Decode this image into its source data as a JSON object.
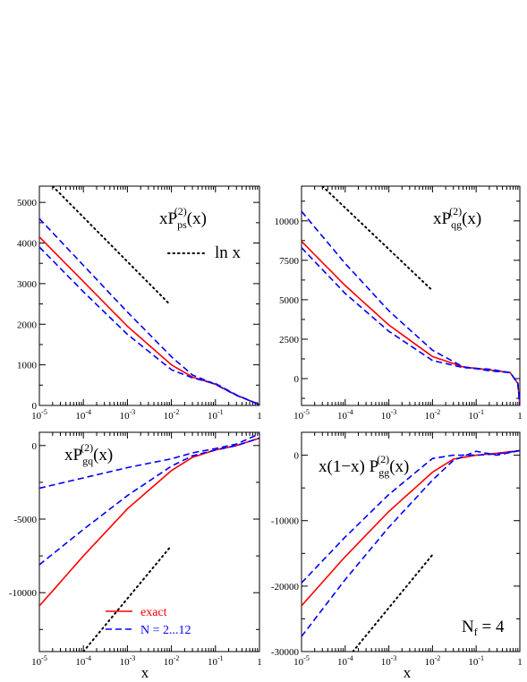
{
  "x_axis_label": "x",
  "x_tick_labels": [
    "10-5",
    "10-4",
    "10-3",
    "10-2",
    "10-1",
    "1"
  ],
  "legend": {
    "exact": "exact",
    "approx": "N = 2...12"
  },
  "nf_label": {
    "main": "N",
    "sub": "f",
    "value": " = 4"
  },
  "colors": {
    "exact": "#ff0000",
    "approx": "#0000ff",
    "lnx": "#000000"
  },
  "chart_data": [
    {
      "type": "line",
      "title_parts": {
        "a": "xP",
        "sub": "ps",
        "sup": "(2)",
        "b": "(x)"
      },
      "annotation": "ln x",
      "xscale": "log",
      "xlim": [
        1e-05,
        1
      ],
      "ylim": [
        0,
        5400
      ],
      "yticks": [
        0,
        1000,
        2000,
        3000,
        4000,
        5000
      ],
      "series": [
        {
          "role": "exact",
          "style": "solid",
          "x": [
            1e-05,
            0.0001,
            0.001,
            0.01,
            0.03,
            0.1,
            0.3,
            1
          ],
          "y": [
            4150,
            3050,
            1950,
            1000,
            700,
            520,
            250,
            20
          ]
        },
        {
          "role": "approx",
          "style": "dashed",
          "x": [
            1e-05,
            0.0001,
            0.001,
            0.01,
            0.03,
            0.1,
            0.3,
            1
          ],
          "y": [
            4600,
            3450,
            2300,
            1200,
            750,
            520,
            250,
            20
          ]
        },
        {
          "role": "approx",
          "style": "dashed",
          "x": [
            1e-05,
            0.0001,
            0.001,
            0.01,
            0.03,
            0.1,
            0.3,
            1
          ],
          "y": [
            3900,
            2800,
            1750,
            880,
            680,
            540,
            260,
            20
          ]
        },
        {
          "role": "lnx",
          "style": "dotted",
          "x": [
            2e-05,
            0.009
          ],
          "y": [
            5400,
            2500
          ]
        }
      ]
    },
    {
      "type": "line",
      "title_parts": {
        "a": "xP",
        "sub": "qg",
        "sup": "(2)",
        "b": "(x)"
      },
      "xscale": "log",
      "xlim": [
        1e-05,
        1
      ],
      "ylim": [
        -1700,
        12200
      ],
      "yticks": [
        0,
        2500,
        5000,
        7500,
        10000
      ],
      "series": [
        {
          "role": "exact",
          "style": "solid",
          "x": [
            1e-05,
            0.0001,
            0.001,
            0.01,
            0.05,
            0.2,
            0.6,
            0.9,
            1
          ],
          "y": [
            8700,
            5900,
            3400,
            1400,
            750,
            550,
            380,
            -300,
            -1700
          ]
        },
        {
          "role": "approx",
          "style": "dashed",
          "x": [
            1e-05,
            0.0001,
            0.001,
            0.01,
            0.05,
            0.2,
            0.6,
            0.9,
            1
          ],
          "y": [
            10600,
            7300,
            4300,
            1800,
            750,
            500,
            380,
            -300,
            -1700
          ]
        },
        {
          "role": "approx",
          "style": "dashed",
          "x": [
            1e-05,
            0.0001,
            0.001,
            0.01,
            0.05,
            0.2,
            0.6,
            0.9,
            1
          ],
          "y": [
            8300,
            5400,
            3000,
            1150,
            700,
            600,
            380,
            -300,
            -1700
          ]
        },
        {
          "role": "lnx",
          "style": "dotted",
          "x": [
            3e-05,
            0.009
          ],
          "y": [
            12200,
            5700
          ]
        }
      ]
    },
    {
      "type": "line",
      "title_parts": {
        "a": "xP",
        "sub": "gq",
        "sup": "(2)",
        "b": "(x)"
      },
      "xscale": "log",
      "xlim": [
        1e-05,
        1
      ],
      "ylim": [
        -14000,
        900
      ],
      "yticks": [
        -10000,
        -5000,
        0
      ],
      "series": [
        {
          "role": "exact",
          "style": "solid",
          "x": [
            1e-05,
            0.0001,
            0.001,
            0.01,
            0.03,
            0.1,
            0.3,
            1
          ],
          "y": [
            -10900,
            -7500,
            -4300,
            -1700,
            -800,
            -300,
            0,
            500
          ]
        },
        {
          "role": "approx",
          "style": "dashed",
          "x": [
            1e-05,
            0.0001,
            0.001,
            0.01,
            0.03,
            0.1,
            0.3,
            1
          ],
          "y": [
            -8100,
            -5700,
            -3400,
            -1400,
            -700,
            -300,
            0,
            500
          ]
        },
        {
          "role": "approx",
          "style": "dashed",
          "x": [
            1e-05,
            0.0001,
            0.001,
            0.01,
            0.03,
            0.1,
            0.3,
            1
          ],
          "y": [
            -2900,
            -2200,
            -1500,
            -900,
            -500,
            -200,
            100,
            800
          ]
        },
        {
          "role": "lnx",
          "style": "dotted",
          "x": [
            0.0001,
            0.01
          ],
          "y": [
            -14000,
            -6800
          ]
        }
      ]
    },
    {
      "type": "line",
      "title_parts": {
        "a": "x(1−x) P",
        "sub": "gg",
        "sup": "(2)",
        "b": "(x)"
      },
      "xscale": "log",
      "xlim": [
        1e-05,
        1
      ],
      "ylim": [
        -30000,
        3500
      ],
      "yticks": [
        -30000,
        -20000,
        -10000,
        0
      ],
      "series": [
        {
          "role": "exact",
          "style": "solid",
          "x": [
            1e-05,
            0.0001,
            0.001,
            0.01,
            0.03,
            0.1,
            0.3,
            1
          ],
          "y": [
            -23000,
            -15500,
            -8600,
            -2600,
            -600,
            0,
            300,
            700
          ]
        },
        {
          "role": "approx",
          "style": "dashed",
          "x": [
            1e-05,
            0.0001,
            0.001,
            0.01,
            0.03,
            0.1,
            0.3,
            1
          ],
          "y": [
            -19500,
            -12500,
            -6000,
            -500,
            0,
            0,
            200,
            700
          ]
        },
        {
          "role": "approx",
          "style": "dashed",
          "x": [
            1e-05,
            0.0001,
            0.001,
            0.01,
            0.03,
            0.1,
            0.3,
            1
          ],
          "y": [
            -27700,
            -19000,
            -11000,
            -3800,
            -800,
            600,
            0,
            700
          ]
        },
        {
          "role": "lnx",
          "style": "dotted",
          "x": [
            0.00015,
            0.01
          ],
          "y": [
            -30000,
            -15200
          ]
        }
      ]
    }
  ]
}
